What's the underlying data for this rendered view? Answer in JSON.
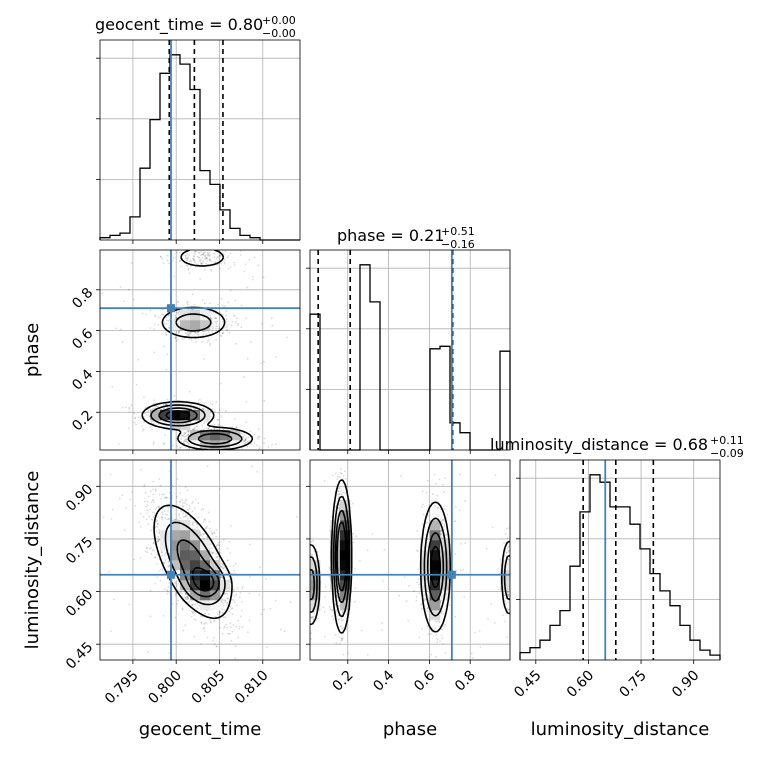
{
  "chart_data": {
    "type": "corner",
    "parameters": [
      "geocent_time",
      "phase",
      "luminosity_distance"
    ],
    "truth_color": "#4682b4",
    "truths": {
      "geocent_time": 0.7994,
      "phase": 0.71,
      "luminosity_distance": 0.648
    },
    "titles": {
      "geocent_time": {
        "label": "geocent_time = 0.80",
        "upper": "+0.00",
        "lower": "−0.00"
      },
      "phase": {
        "label": "phase = 0.21",
        "upper": "+0.51",
        "lower": "−0.16"
      },
      "luminosity_distance": {
        "label": "luminosity_distance = 0.68",
        "upper": "+0.11",
        "lower": "−0.09"
      }
    },
    "ranges": {
      "geocent_time": [
        0.7912,
        0.8143
      ],
      "phase": [
        0.015,
        0.995
      ],
      "luminosity_distance": [
        0.405,
        0.975
      ]
    },
    "quantiles": {
      "geocent_time": [
        0.7992,
        0.8021,
        0.8054
      ],
      "phase": [
        0.055,
        0.212,
        0.714
      ],
      "luminosity_distance": [
        0.585,
        0.678,
        0.785
      ]
    },
    "ticks": {
      "geocent_time": [
        "0.795",
        "0.800",
        "0.805",
        "0.810"
      ],
      "phase": [
        "0.2",
        "0.4",
        "0.6",
        "0.8"
      ],
      "luminosity_distance": [
        "0.45",
        "0.60",
        "0.75",
        "0.90"
      ]
    },
    "histograms": {
      "geocent_time": [
        1,
        2,
        3,
        10,
        31,
        52,
        72,
        80,
        76,
        65,
        30,
        24,
        13,
        5,
        2,
        1,
        0,
        0,
        0,
        0
      ],
      "phase": [
        110,
        0,
        0,
        0,
        0,
        150,
        120,
        0,
        0,
        0,
        0,
        0,
        82,
        84,
        22,
        14,
        0,
        0,
        0,
        80
      ],
      "luminosity_distance": [
        3,
        5,
        8,
        14,
        20,
        38,
        60,
        75,
        72,
        62,
        62,
        55,
        45,
        35,
        28,
        22,
        14,
        8,
        4,
        2
      ]
    },
    "grid": true
  }
}
